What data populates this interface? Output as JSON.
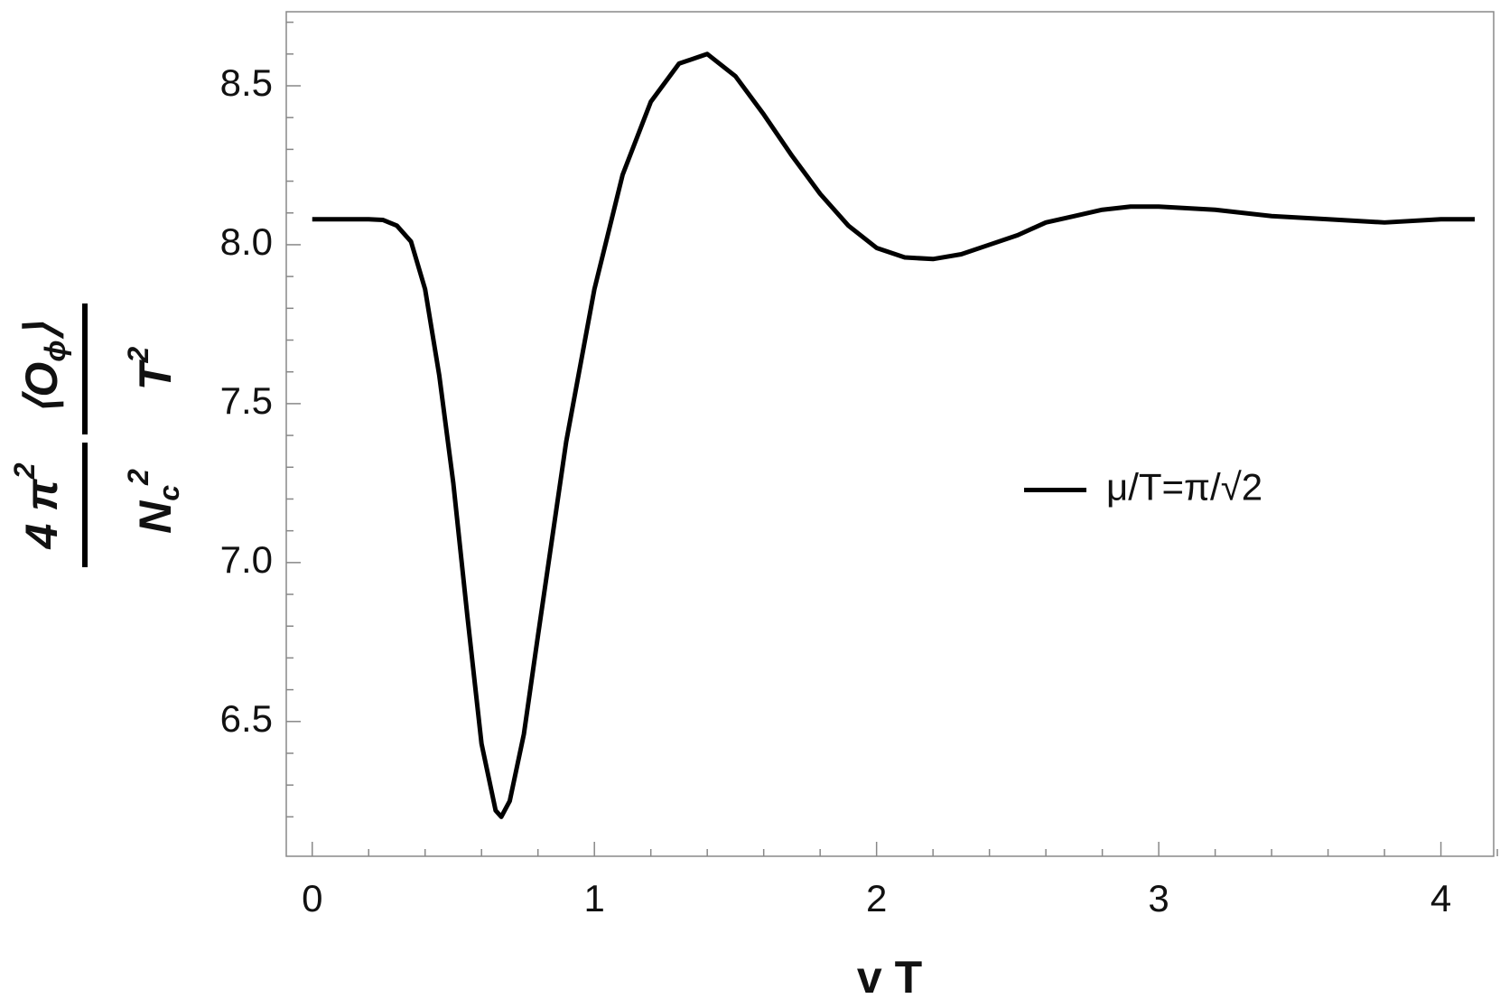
{
  "chart_data": {
    "type": "line",
    "x_label": "v T",
    "y_label": {
      "numerator_1": [
        {
          "text": "4 π"
        },
        {
          "text": "2",
          "sup": true
        }
      ],
      "denominator_1": [
        {
          "text": "N"
        },
        {
          "text": "c",
          "sub": true
        },
        {
          "text": "2",
          "sup": true
        }
      ],
      "numerator_2": [
        {
          "text": "⟨O"
        },
        {
          "text": "ϕ",
          "sub": true
        },
        {
          "text": "⟩"
        }
      ],
      "denominator_2": [
        {
          "text": "T"
        },
        {
          "text": "2",
          "sup": true
        }
      ]
    },
    "x": [
      0,
      0.1,
      0.2,
      0.25,
      0.3,
      0.35,
      0.4,
      0.45,
      0.5,
      0.55,
      0.6,
      0.65,
      0.67,
      0.7,
      0.75,
      0.8,
      0.9,
      1.0,
      1.1,
      1.2,
      1.3,
      1.4,
      1.5,
      1.6,
      1.7,
      1.8,
      1.9,
      2.0,
      2.1,
      2.2,
      2.3,
      2.4,
      2.5,
      2.6,
      2.7,
      2.8,
      2.9,
      3.0,
      3.2,
      3.4,
      3.6,
      3.8,
      4.0,
      4.12
    ],
    "series": [
      {
        "name": "μ/T=π/√2",
        "color": "#000000",
        "values": [
          8.08,
          8.08,
          8.08,
          8.078,
          8.06,
          8.01,
          7.86,
          7.59,
          7.25,
          6.83,
          6.43,
          6.22,
          6.2,
          6.25,
          6.46,
          6.77,
          7.38,
          7.86,
          8.22,
          8.45,
          8.57,
          8.6,
          8.53,
          8.41,
          8.28,
          8.16,
          8.06,
          7.99,
          7.96,
          7.955,
          7.97,
          8.0,
          8.03,
          8.07,
          8.09,
          8.11,
          8.12,
          8.12,
          8.11,
          8.09,
          8.08,
          8.07,
          8.08,
          8.08
        ]
      }
    ],
    "xlim": [
      -0.092,
      4.187
    ],
    "ylim": [
      6.076,
      8.733
    ],
    "xticks": [
      0,
      1,
      2,
      3,
      4
    ],
    "yticks": [
      6.5,
      7.0,
      7.5,
      8.0,
      8.5
    ],
    "xminorticks": [
      0.2,
      0.4,
      0.6,
      0.8,
      1.2,
      1.4,
      1.6,
      1.8,
      2.2,
      2.4,
      2.6,
      2.8,
      3.2,
      3.4,
      3.6,
      3.8,
      4.2
    ],
    "yminorticks": [
      6.2,
      6.3,
      6.4,
      6.6,
      6.7,
      6.8,
      6.9,
      7.1,
      7.2,
      7.3,
      7.4,
      7.6,
      7.7,
      7.8,
      7.9,
      8.1,
      8.2,
      8.3,
      8.4,
      8.6,
      8.7
    ],
    "legend": "right"
  }
}
